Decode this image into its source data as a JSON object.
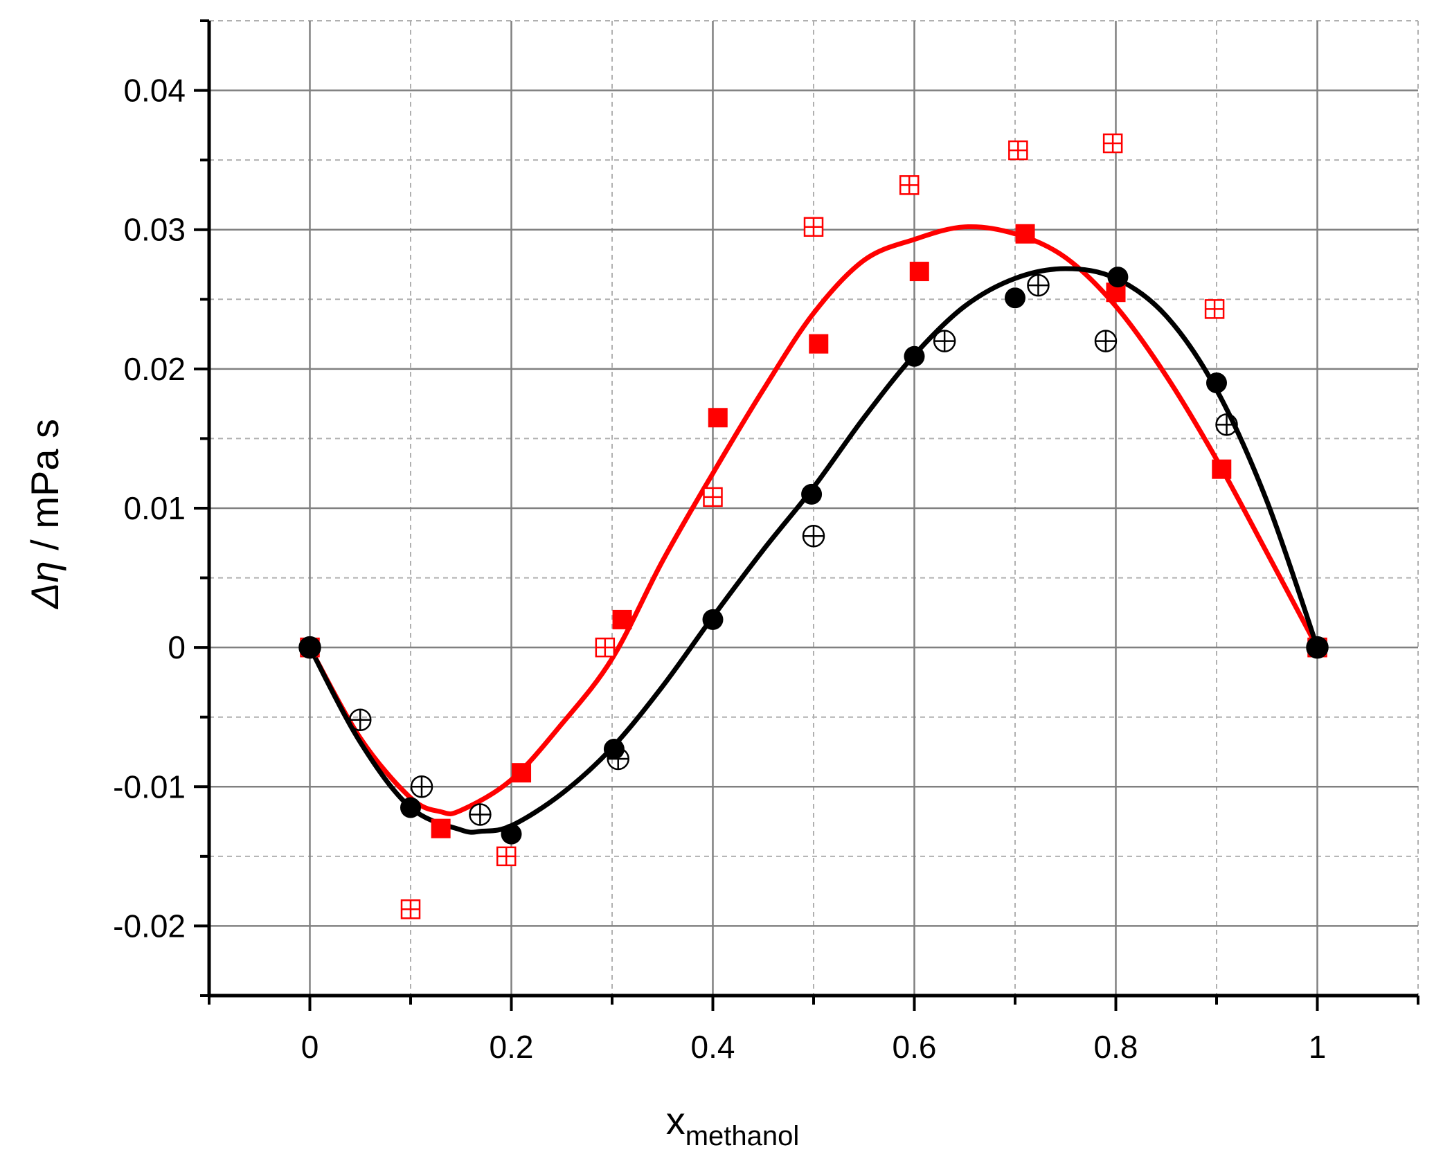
{
  "chart_data": {
    "type": "scatter",
    "xlabel": "x",
    "xlabel_subscript": "methanol",
    "ylabel_symbol": "Δη",
    "ylabel_unit": " / mPa s",
    "xlim": [
      -0.1,
      1.1
    ],
    "ylim": [
      -0.025,
      0.045
    ],
    "x_ticks": [
      0,
      0.2,
      0.4,
      0.6,
      0.8,
      1
    ],
    "x_tick_labels": [
      "0",
      "0.2",
      "0.4",
      "0.6",
      "0.8",
      "1"
    ],
    "y_ticks": [
      -0.02,
      -0.01,
      0,
      0.01,
      0.02,
      0.03,
      0.04
    ],
    "y_tick_labels": [
      "-0.02",
      "-0.01",
      "0",
      "0.01",
      "0.02",
      "0.03",
      "0.04"
    ],
    "grid": true,
    "colors": {
      "red": "#ff0000",
      "black": "#000000"
    },
    "series": [
      {
        "marker": "filled-square",
        "color": "#ff0000",
        "x": [
          0,
          0.13,
          0.21,
          0.31,
          0.405,
          0.505,
          0.605,
          0.71,
          0.8,
          0.905,
          1.0
        ],
        "y": [
          0,
          -0.013,
          -0.009,
          0.002,
          0.0165,
          0.0218,
          0.027,
          0.0297,
          0.0255,
          0.0128,
          0
        ]
      },
      {
        "marker": "open-square-cross",
        "color": "#ff0000",
        "x": [
          0,
          0.1,
          0.195,
          0.293,
          0.4,
          0.5,
          0.595,
          0.703,
          0.797,
          0.898,
          1.0
        ],
        "y": [
          0,
          -0.0188,
          -0.015,
          0,
          0.0108,
          0.0302,
          0.0332,
          0.0357,
          0.0362,
          0.0243,
          0
        ]
      },
      {
        "marker": "filled-circle",
        "color": "#000000",
        "x": [
          0,
          0.1,
          0.2,
          0.302,
          0.4,
          0.498,
          0.6,
          0.7,
          0.802,
          0.9,
          1.0
        ],
        "y": [
          0,
          -0.0115,
          -0.0134,
          -0.0073,
          0.002,
          0.011,
          0.0209,
          0.0251,
          0.0266,
          0.019,
          0
        ]
      },
      {
        "marker": "open-circle-cross",
        "color": "#000000",
        "x": [
          0,
          0.05,
          0.111,
          0.169,
          0.306,
          0.5,
          0.63,
          0.723,
          0.79,
          0.91,
          1.0
        ],
        "y": [
          0,
          -0.0052,
          -0.01,
          -0.012,
          -0.008,
          0.008,
          0.022,
          0.026,
          0.022,
          0.016,
          0
        ]
      },
      {
        "marker": "line",
        "color": "#ff0000",
        "x": [
          0,
          0.05,
          0.1,
          0.13,
          0.15,
          0.2,
          0.25,
          0.3,
          0.35,
          0.4,
          0.45,
          0.5,
          0.55,
          0.6,
          0.65,
          0.7,
          0.75,
          0.8,
          0.85,
          0.9,
          0.95,
          1.0
        ],
        "y": [
          0,
          -0.0065,
          -0.0108,
          -0.0118,
          -0.0117,
          -0.0095,
          -0.0055,
          -0.0008,
          0.0062,
          0.0125,
          0.0185,
          0.024,
          0.0278,
          0.0293,
          0.0302,
          0.0297,
          0.028,
          0.0245,
          0.0195,
          0.0135,
          0.0068,
          0
        ]
      },
      {
        "marker": "line",
        "color": "#000000",
        "x": [
          0,
          0.05,
          0.1,
          0.15,
          0.17,
          0.2,
          0.25,
          0.3,
          0.35,
          0.4,
          0.45,
          0.5,
          0.55,
          0.6,
          0.65,
          0.7,
          0.75,
          0.8,
          0.85,
          0.9,
          0.95,
          1.0
        ],
        "y": [
          0,
          -0.0068,
          -0.0115,
          -0.0131,
          -0.0132,
          -0.0128,
          -0.0105,
          -0.0072,
          -0.0028,
          0.0022,
          0.007,
          0.0115,
          0.0165,
          0.021,
          0.0245,
          0.0265,
          0.0272,
          0.0265,
          0.0238,
          0.0185,
          0.0105,
          0
        ]
      }
    ]
  }
}
